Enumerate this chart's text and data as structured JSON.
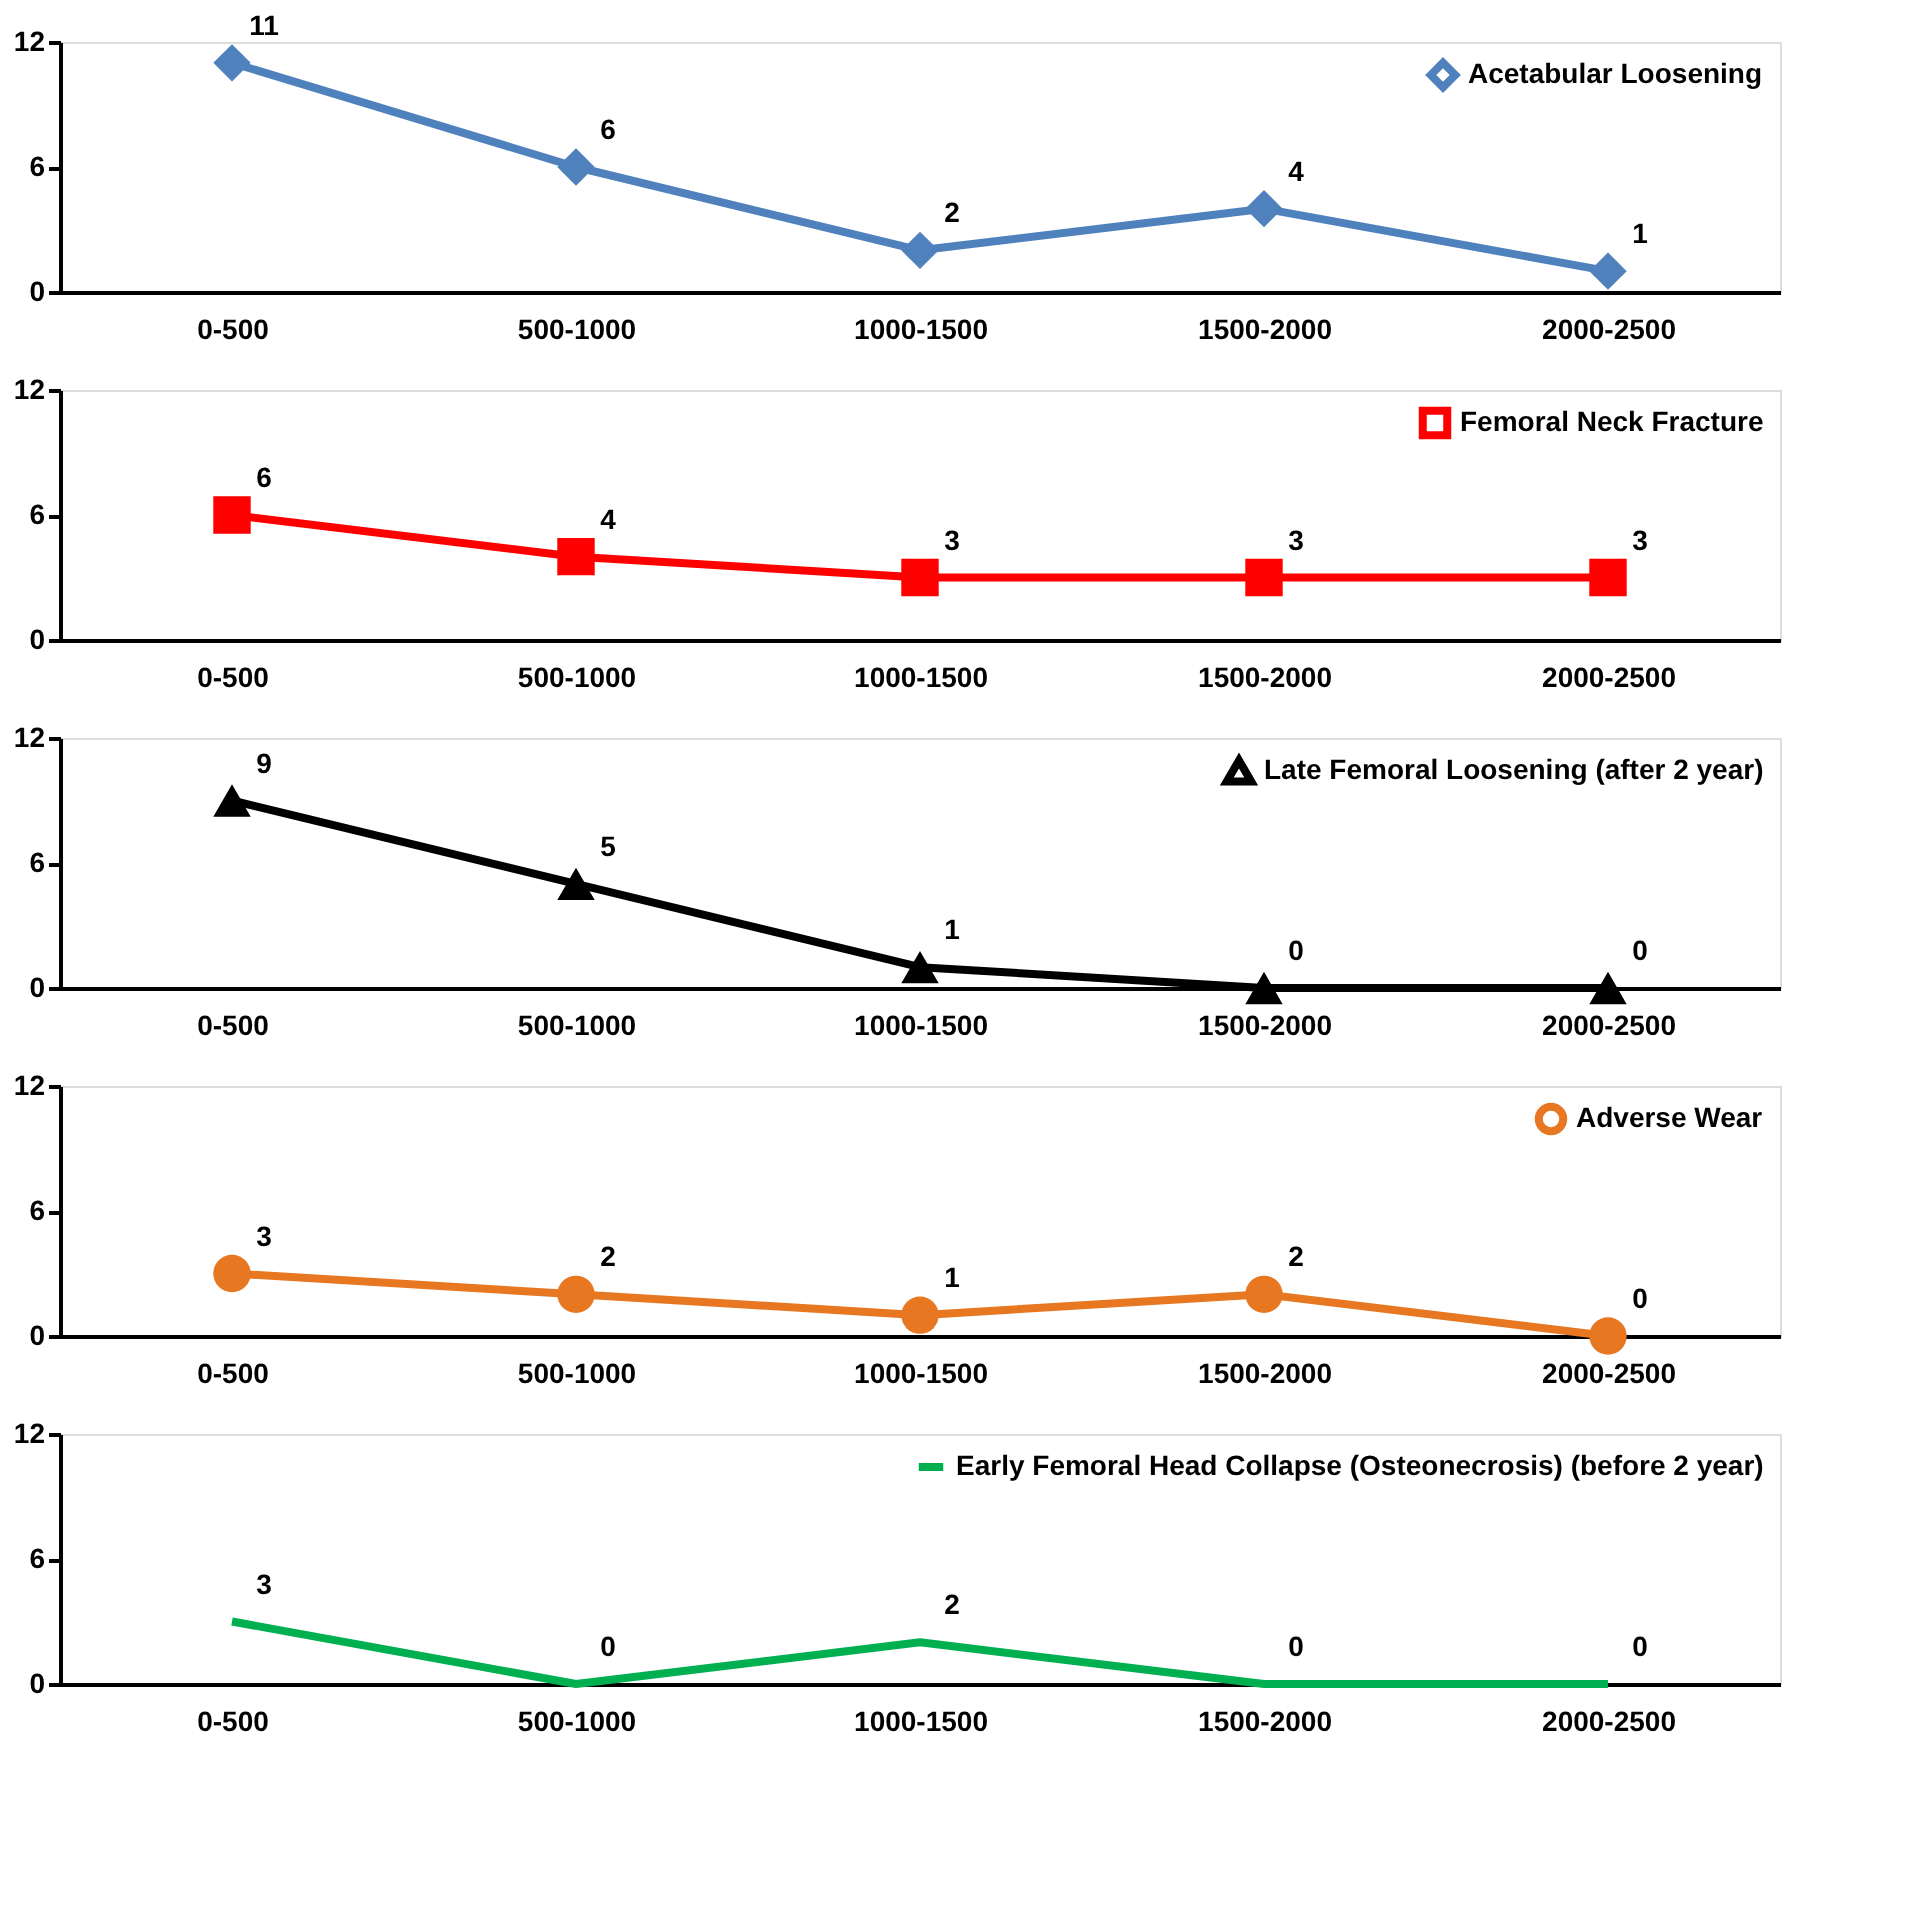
{
  "chart_data": [
    {
      "type": "line",
      "categories": [
        "0-500",
        "500-1000",
        "1000-1500",
        "1500-2000",
        "2000-2500"
      ],
      "series": [
        {
          "name": "Acetabular Loosening",
          "color": "#4f81bd",
          "values": [
            11,
            6,
            2,
            4,
            1
          ]
        }
      ],
      "ylim": [
        0,
        12
      ],
      "yticks": [
        0,
        6,
        12
      ],
      "data_labels": true,
      "legend": "top right",
      "marker": "diamond",
      "grid": false
    },
    {
      "type": "line",
      "categories": [
        "0-500",
        "500-1000",
        "1000-1500",
        "1500-2000",
        "2000-2500"
      ],
      "series": [
        {
          "name": "Femoral Neck Fracture",
          "color": "#ff0000",
          "values": [
            6,
            4,
            3,
            3,
            3
          ]
        }
      ],
      "ylim": [
        0,
        12
      ],
      "yticks": [
        0,
        6,
        12
      ],
      "data_labels": true,
      "legend": "top right",
      "marker": "square",
      "grid": false
    },
    {
      "type": "line",
      "categories": [
        "0-500",
        "500-1000",
        "1000-1500",
        "1500-2000",
        "2000-2500"
      ],
      "series": [
        {
          "name": "Late Femoral Loosening (after 2 year)",
          "color": "#000000",
          "values": [
            9,
            5,
            1,
            0,
            0
          ]
        }
      ],
      "ylim": [
        0,
        12
      ],
      "yticks": [
        0,
        6,
        12
      ],
      "data_labels": true,
      "legend": "top right",
      "marker": "triangle",
      "grid": false
    },
    {
      "type": "line",
      "categories": [
        "0-500",
        "500-1000",
        "1000-1500",
        "1500-2000",
        "2000-2500"
      ],
      "series": [
        {
          "name": "Adverse Wear",
          "color": "#e87722",
          "values": [
            3,
            2,
            1,
            2,
            0
          ]
        }
      ],
      "ylim": [
        0,
        12
      ],
      "yticks": [
        0,
        6,
        12
      ],
      "data_labels": true,
      "legend": "top right",
      "marker": "circle",
      "grid": false
    },
    {
      "type": "line",
      "categories": [
        "0-500",
        "500-1000",
        "1000-1500",
        "1500-2000",
        "2000-2500"
      ],
      "series": [
        {
          "name": "Early Femoral Head Collapse (Osteonecrosis) (before 2 year)",
          "color": "#00b050",
          "values": [
            3,
            0,
            2,
            0,
            0
          ]
        }
      ],
      "ylim": [
        0,
        12
      ],
      "yticks": [
        0,
        6,
        12
      ],
      "data_labels": true,
      "legend": "top right",
      "marker": "none",
      "grid": false
    }
  ]
}
